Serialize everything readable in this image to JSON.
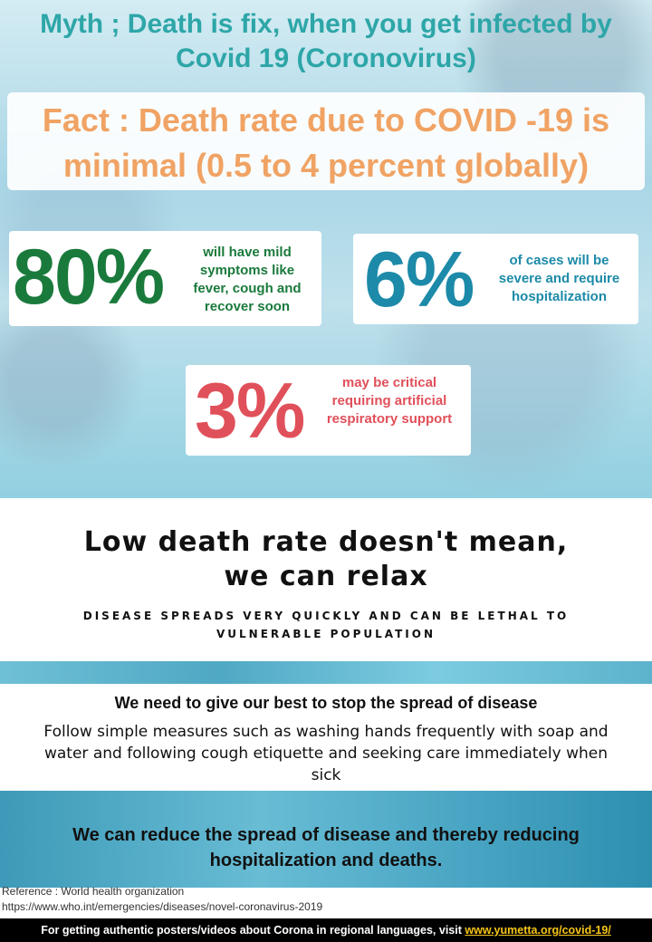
{
  "myth": "Myth ; Death is fix, when you get infected by Covid 19 (Coronovirus)",
  "fact_line1": "Fact : Death rate due to COVID -19 is",
  "fact_line2": "minimal (0.5 to 4 percent globally)",
  "stats": [
    {
      "value": "80%",
      "text": "will have mild symptoms like fever, cough and recover soon",
      "color": "#1a7a3c"
    },
    {
      "value": "6%",
      "text": "of cases will be severe and require hospitalization",
      "color": "#1c8aa8"
    },
    {
      "value": "3%",
      "text": "may be critical requiring artificial respiratory support",
      "color": "#e0505a"
    }
  ],
  "low_death_line1": "Low death rate doesn't mean,",
  "low_death_line2": "we can relax",
  "spread_note": "DISEASE SPREADS VERY QUICKLY AND CAN BE LETHAL TO VULNERABLE POPULATION",
  "need_title": "We need to give our best to stop the spread of disease",
  "need_body": "Follow simple measures such as washing hands frequently with soap and water and following cough etiquette and seeking care immediately when sick",
  "reduce": "We can reduce the spread of disease and thereby reducing hospitalization and deaths.",
  "reference": "Reference : World health organization",
  "reference_url": "https://www.who.int/emergencies/diseases/novel-coronavirus-2019",
  "footer_text": "For getting authentic posters/videos about Corona in regional languages, visit",
  "footer_link": "www.yumetta.org/covid-19/"
}
